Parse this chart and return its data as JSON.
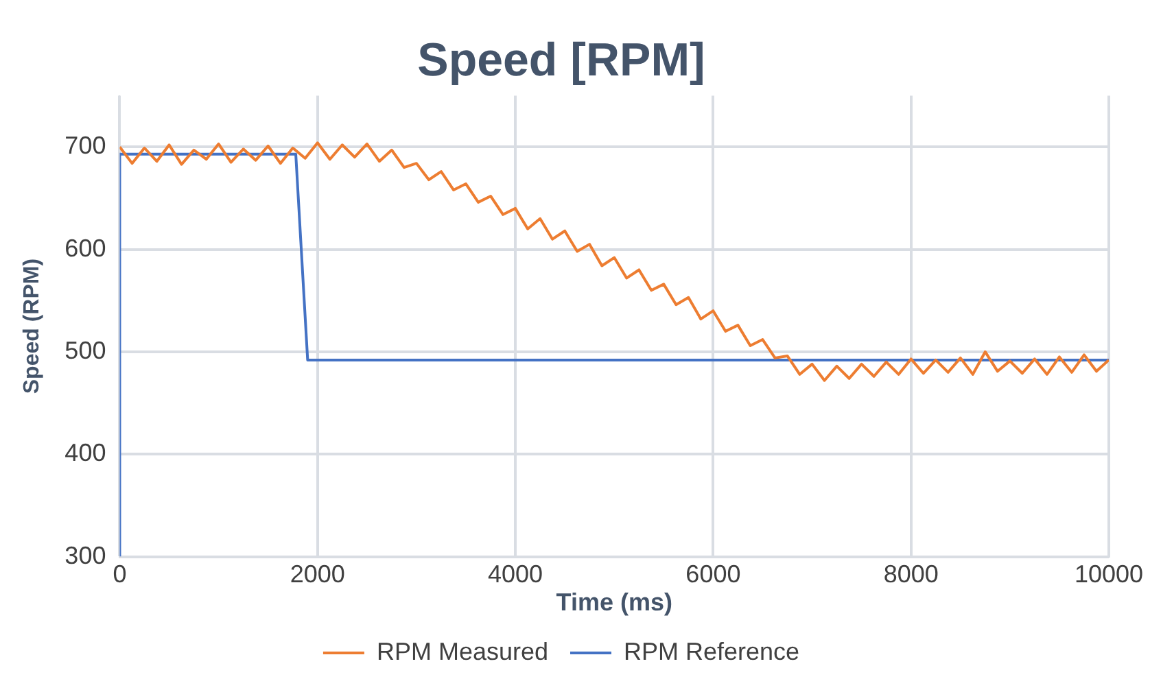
{
  "chart_data": {
    "type": "line",
    "title": "Speed [RPM]",
    "xlabel": "Time (ms)",
    "ylabel": "Speed (RPM)",
    "xlim": [
      0,
      10000
    ],
    "xticks": [
      0,
      2000,
      4000,
      6000,
      8000,
      10000
    ],
    "ylim": [
      300,
      750
    ],
    "yticks": [
      300,
      400,
      500,
      600,
      700
    ],
    "grid": true,
    "legend": "bottom",
    "marker": "none",
    "line_style": "solid",
    "series": [
      {
        "name": "RPM Measured",
        "color": "#ed7d31",
        "x": [
          0,
          125,
          250,
          375,
          500,
          625,
          750,
          875,
          1000,
          1125,
          1250,
          1375,
          1500,
          1625,
          1750,
          1875,
          2000,
          2125,
          2250,
          2375,
          2500,
          2625,
          2750,
          2875,
          3000,
          3125,
          3250,
          3375,
          3500,
          3625,
          3750,
          3875,
          4000,
          4125,
          4250,
          4375,
          4500,
          4625,
          4750,
          4875,
          5000,
          5125,
          5250,
          5375,
          5500,
          5625,
          5750,
          5875,
          6000,
          6125,
          6250,
          6375,
          6500,
          6625,
          6750,
          6875,
          7000,
          7125,
          7250,
          7375,
          7500,
          7625,
          7750,
          7875,
          8000,
          8125,
          8250,
          8375,
          8500,
          8625,
          8750,
          8875,
          9000,
          9125,
          9250,
          9375,
          9500,
          9625,
          9750,
          9875,
          10000
        ],
        "values": [
          700,
          684,
          699,
          686,
          702,
          683,
          697,
          688,
          703,
          685,
          698,
          687,
          701,
          684,
          699,
          689,
          704,
          688,
          702,
          690,
          703,
          686,
          697,
          680,
          684,
          668,
          676,
          658,
          664,
          646,
          652,
          634,
          640,
          620,
          630,
          610,
          618,
          598,
          605,
          584,
          592,
          572,
          580,
          560,
          566,
          546,
          553,
          532,
          540,
          520,
          526,
          506,
          512,
          494,
          496,
          478,
          488,
          472,
          486,
          474,
          488,
          476,
          490,
          478,
          493,
          479,
          492,
          480,
          494,
          478,
          500,
          481,
          491,
          479,
          493,
          478,
          495,
          480,
          497,
          481,
          492
        ]
      },
      {
        "name": "RPM Reference",
        "color": "#4472c4",
        "x": [
          0,
          0,
          1780,
          1900,
          10000
        ],
        "values": [
          300,
          693,
          693,
          492,
          492
        ]
      }
    ]
  }
}
